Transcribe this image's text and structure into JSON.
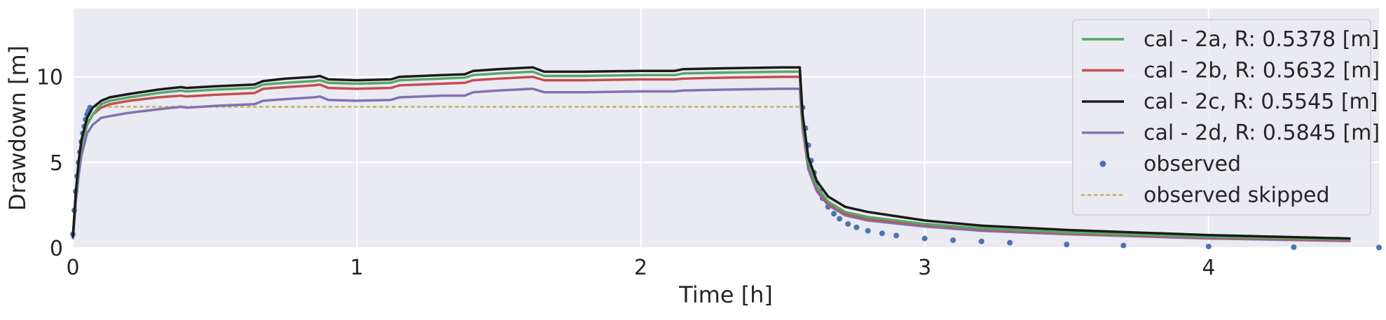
{
  "chart_data": {
    "type": "line",
    "title": "",
    "xlabel": "Time [h]",
    "ylabel": "Drawdown [m]",
    "xlim": [
      0,
      4.6
    ],
    "ylim": [
      0,
      14
    ],
    "xticks": [
      0,
      1,
      2,
      3,
      4
    ],
    "yticks": [
      0,
      5,
      10
    ],
    "grid": true,
    "background": "#eaeaf2",
    "legend_position": "top-right",
    "series": [
      {
        "name": "cal - 2a, R: 0.5378 [m]",
        "style": "solid",
        "color": "#55a868",
        "x": [
          0,
          0.01,
          0.02,
          0.03,
          0.05,
          0.07,
          0.1,
          0.13,
          0.2,
          0.3,
          0.38,
          0.4,
          0.5,
          0.64,
          0.67,
          0.75,
          0.85,
          0.87,
          0.9,
          1.0,
          1.12,
          1.15,
          1.3,
          1.38,
          1.41,
          1.5,
          1.62,
          1.66,
          1.8,
          2.0,
          2.12,
          2.15,
          2.3,
          2.5,
          2.56,
          2.57,
          2.59,
          2.62,
          2.66,
          2.72,
          2.8,
          3.0,
          3.2,
          3.5,
          4.0,
          4.5
        ],
        "y": [
          0.6,
          3.0,
          4.8,
          6.0,
          7.2,
          7.8,
          8.4,
          8.6,
          8.8,
          9.05,
          9.2,
          9.15,
          9.25,
          9.35,
          9.55,
          9.65,
          9.75,
          9.8,
          9.65,
          9.6,
          9.65,
          9.8,
          9.9,
          9.95,
          10.1,
          10.2,
          10.3,
          10.05,
          10.05,
          10.1,
          10.1,
          10.2,
          10.25,
          10.3,
          10.3,
          7.5,
          5.0,
          3.6,
          2.7,
          2.1,
          1.8,
          1.4,
          1.15,
          0.9,
          0.65,
          0.5
        ]
      },
      {
        "name": "cal - 2b, R: 0.5632 [m]",
        "style": "solid",
        "color": "#c44e52",
        "x": [
          0,
          0.01,
          0.02,
          0.03,
          0.05,
          0.07,
          0.1,
          0.13,
          0.2,
          0.3,
          0.38,
          0.4,
          0.5,
          0.64,
          0.67,
          0.75,
          0.85,
          0.87,
          0.9,
          1.0,
          1.12,
          1.15,
          1.3,
          1.38,
          1.41,
          1.5,
          1.62,
          1.66,
          1.8,
          2.0,
          2.12,
          2.15,
          2.3,
          2.5,
          2.56,
          2.57,
          2.59,
          2.62,
          2.66,
          2.72,
          2.8,
          3.0,
          3.2,
          3.5,
          4.0,
          4.5
        ],
        "y": [
          0.6,
          3.0,
          4.8,
          6.0,
          7.2,
          7.8,
          8.2,
          8.4,
          8.6,
          8.8,
          8.9,
          8.85,
          8.95,
          9.05,
          9.3,
          9.4,
          9.5,
          9.55,
          9.35,
          9.3,
          9.35,
          9.5,
          9.6,
          9.65,
          9.8,
          9.9,
          10.0,
          9.8,
          9.8,
          9.85,
          9.85,
          9.9,
          9.95,
          10.0,
          10.0,
          7.3,
          4.9,
          3.5,
          2.6,
          2.0,
          1.7,
          1.35,
          1.1,
          0.85,
          0.6,
          0.45
        ]
      },
      {
        "name": "cal - 2c, R: 0.5545 [m]",
        "style": "solid",
        "color": "#1a1a1a",
        "x": [
          0,
          0.01,
          0.02,
          0.03,
          0.05,
          0.07,
          0.1,
          0.13,
          0.2,
          0.3,
          0.38,
          0.4,
          0.5,
          0.64,
          0.67,
          0.75,
          0.85,
          0.87,
          0.9,
          1.0,
          1.12,
          1.15,
          1.3,
          1.38,
          1.41,
          1.5,
          1.62,
          1.66,
          1.8,
          2.0,
          2.12,
          2.15,
          2.3,
          2.5,
          2.56,
          2.57,
          2.59,
          2.62,
          2.66,
          2.72,
          2.8,
          3.0,
          3.2,
          3.5,
          4.0,
          4.5
        ],
        "y": [
          0.6,
          3.2,
          5.0,
          6.3,
          7.6,
          8.2,
          8.6,
          8.8,
          9.0,
          9.25,
          9.4,
          9.35,
          9.45,
          9.55,
          9.75,
          9.9,
          10.0,
          10.05,
          9.85,
          9.8,
          9.85,
          10.0,
          10.1,
          10.15,
          10.35,
          10.45,
          10.55,
          10.3,
          10.3,
          10.35,
          10.35,
          10.45,
          10.5,
          10.55,
          10.55,
          7.8,
          5.3,
          3.9,
          3.0,
          2.4,
          2.1,
          1.6,
          1.3,
          1.05,
          0.75,
          0.55
        ]
      },
      {
        "name": "cal - 2d, R: 0.5845 [m]",
        "style": "solid",
        "color": "#8172b2",
        "x": [
          0,
          0.01,
          0.02,
          0.03,
          0.05,
          0.07,
          0.1,
          0.13,
          0.2,
          0.3,
          0.38,
          0.4,
          0.5,
          0.64,
          0.67,
          0.75,
          0.85,
          0.87,
          0.9,
          1.0,
          1.12,
          1.15,
          1.3,
          1.38,
          1.41,
          1.5,
          1.62,
          1.66,
          1.8,
          2.0,
          2.12,
          2.15,
          2.3,
          2.5,
          2.56,
          2.57,
          2.59,
          2.62,
          2.66,
          2.72,
          2.8,
          3.0,
          3.2,
          3.5,
          4.0,
          4.5
        ],
        "y": [
          0.5,
          2.6,
          4.2,
          5.4,
          6.7,
          7.2,
          7.6,
          7.7,
          7.9,
          8.1,
          8.25,
          8.2,
          8.3,
          8.4,
          8.6,
          8.7,
          8.8,
          8.85,
          8.65,
          8.6,
          8.65,
          8.8,
          8.9,
          8.9,
          9.1,
          9.2,
          9.3,
          9.1,
          9.1,
          9.15,
          9.15,
          9.2,
          9.25,
          9.3,
          9.3,
          7.0,
          4.6,
          3.3,
          2.5,
          1.9,
          1.6,
          1.25,
          1.0,
          0.8,
          0.55,
          0.4
        ]
      },
      {
        "name": "observed",
        "style": "dots",
        "color": "#4c72b0",
        "x": [
          0.0,
          0.005,
          0.01,
          0.015,
          0.02,
          0.025,
          0.03,
          0.035,
          0.04,
          0.045,
          0.05,
          0.055,
          0.06,
          2.57,
          2.58,
          2.59,
          2.6,
          2.61,
          2.62,
          2.63,
          2.64,
          2.66,
          2.68,
          2.7,
          2.73,
          2.76,
          2.8,
          2.85,
          2.9,
          3.0,
          3.1,
          3.2,
          3.3,
          3.5,
          3.7,
          4.0,
          4.3,
          4.6
        ],
        "y": [
          0.8,
          2.2,
          3.3,
          4.2,
          5.0,
          5.6,
          6.2,
          6.7,
          7.1,
          7.5,
          7.8,
          8.0,
          8.2,
          8.2,
          7.0,
          6.0,
          5.1,
          4.4,
          3.8,
          3.3,
          2.9,
          2.4,
          2.0,
          1.7,
          1.4,
          1.2,
          1.0,
          0.85,
          0.72,
          0.55,
          0.45,
          0.38,
          0.3,
          0.2,
          0.14,
          0.08,
          0.04,
          0.02
        ]
      },
      {
        "name": "observed skipped",
        "style": "dotted",
        "color": "#ccb974",
        "x": [
          0.06,
          2.57
        ],
        "y": [
          8.25,
          8.25
        ]
      }
    ]
  }
}
